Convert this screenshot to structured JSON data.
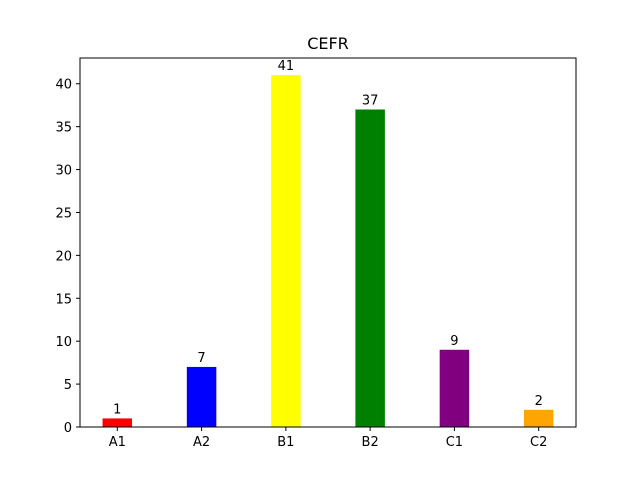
{
  "chart_data": {
    "type": "bar",
    "title": "CEFR",
    "xlabel": "",
    "ylabel": "",
    "categories": [
      "A1",
      "A2",
      "B1",
      "B2",
      "C1",
      "C2"
    ],
    "values": [
      1,
      7,
      41,
      37,
      9,
      2
    ],
    "colors": [
      "#ff0000",
      "#0000ff",
      "#ffff00",
      "#008000",
      "#800080",
      "#ffa500"
    ],
    "ylim": [
      0,
      43
    ],
    "yticks": [
      0,
      5,
      10,
      15,
      20,
      25,
      30,
      35,
      40
    ],
    "grid": false,
    "legend": "none"
  }
}
